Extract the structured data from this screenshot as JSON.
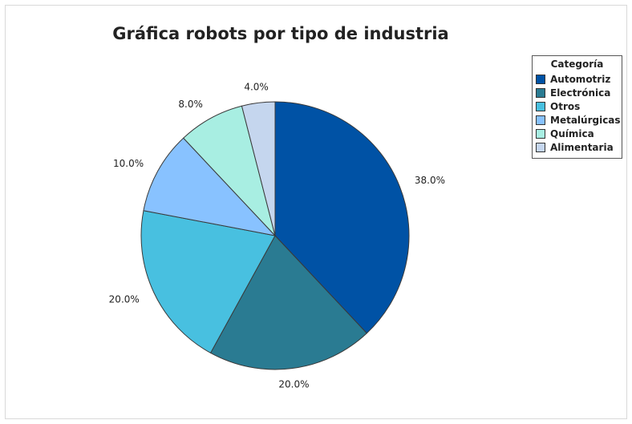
{
  "chart_data": {
    "type": "pie",
    "title": "Gráfica robots por tipo de industria",
    "legend_title": "Categoría",
    "legend_position": "top-right",
    "categories": [
      "Automotriz",
      "Electrónica",
      "Otros",
      "Metalúrgicas",
      "Química",
      "Alimentaria"
    ],
    "values": [
      38.0,
      20.0,
      20.0,
      10.0,
      8.0,
      4.0
    ],
    "labels": [
      "38.0%",
      "20.0%",
      "20.0%",
      "10.0%",
      "8.0%",
      "4.0%"
    ],
    "colors": [
      "#0052a5",
      "#2a7b92",
      "#48c0e0",
      "#88c2ff",
      "#a8eee2",
      "#c5d6ee"
    ]
  }
}
